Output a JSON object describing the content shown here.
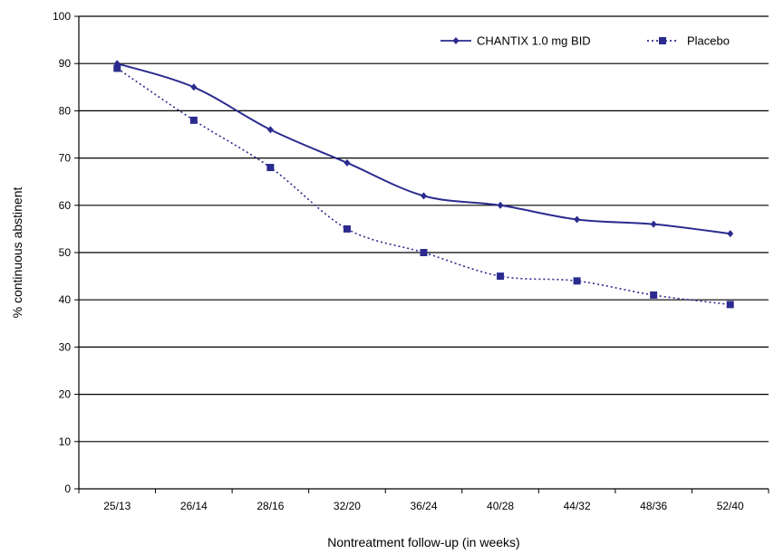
{
  "chart_data": {
    "type": "line",
    "categories": [
      "25/13",
      "26/14",
      "28/16",
      "32/20",
      "36/24",
      "40/28",
      "44/32",
      "48/36",
      "52/40"
    ],
    "series": [
      {
        "name": "CHANTIX 1.0 mg BID",
        "values": [
          90,
          85,
          76,
          69,
          62,
          60,
          57,
          56,
          54
        ],
        "color": "#2b2b8f",
        "line_style": "solid",
        "marker": "diamond"
      },
      {
        "name": "Placebo",
        "values": [
          89,
          78,
          68,
          55,
          50,
          45,
          44,
          41,
          39
        ],
        "color": "#2b2b8f",
        "line_style": "dotted",
        "marker": "square"
      }
    ],
    "title": "",
    "xlabel": "Nontreatment follow-up (in weeks)",
    "ylabel": "% continuous abstinent",
    "ylim": [
      0,
      100
    ],
    "yticks": [
      0,
      10,
      20,
      30,
      40,
      50,
      60,
      70,
      80,
      90,
      100
    ],
    "grid": "horizontal",
    "legend_position": "top-right"
  }
}
